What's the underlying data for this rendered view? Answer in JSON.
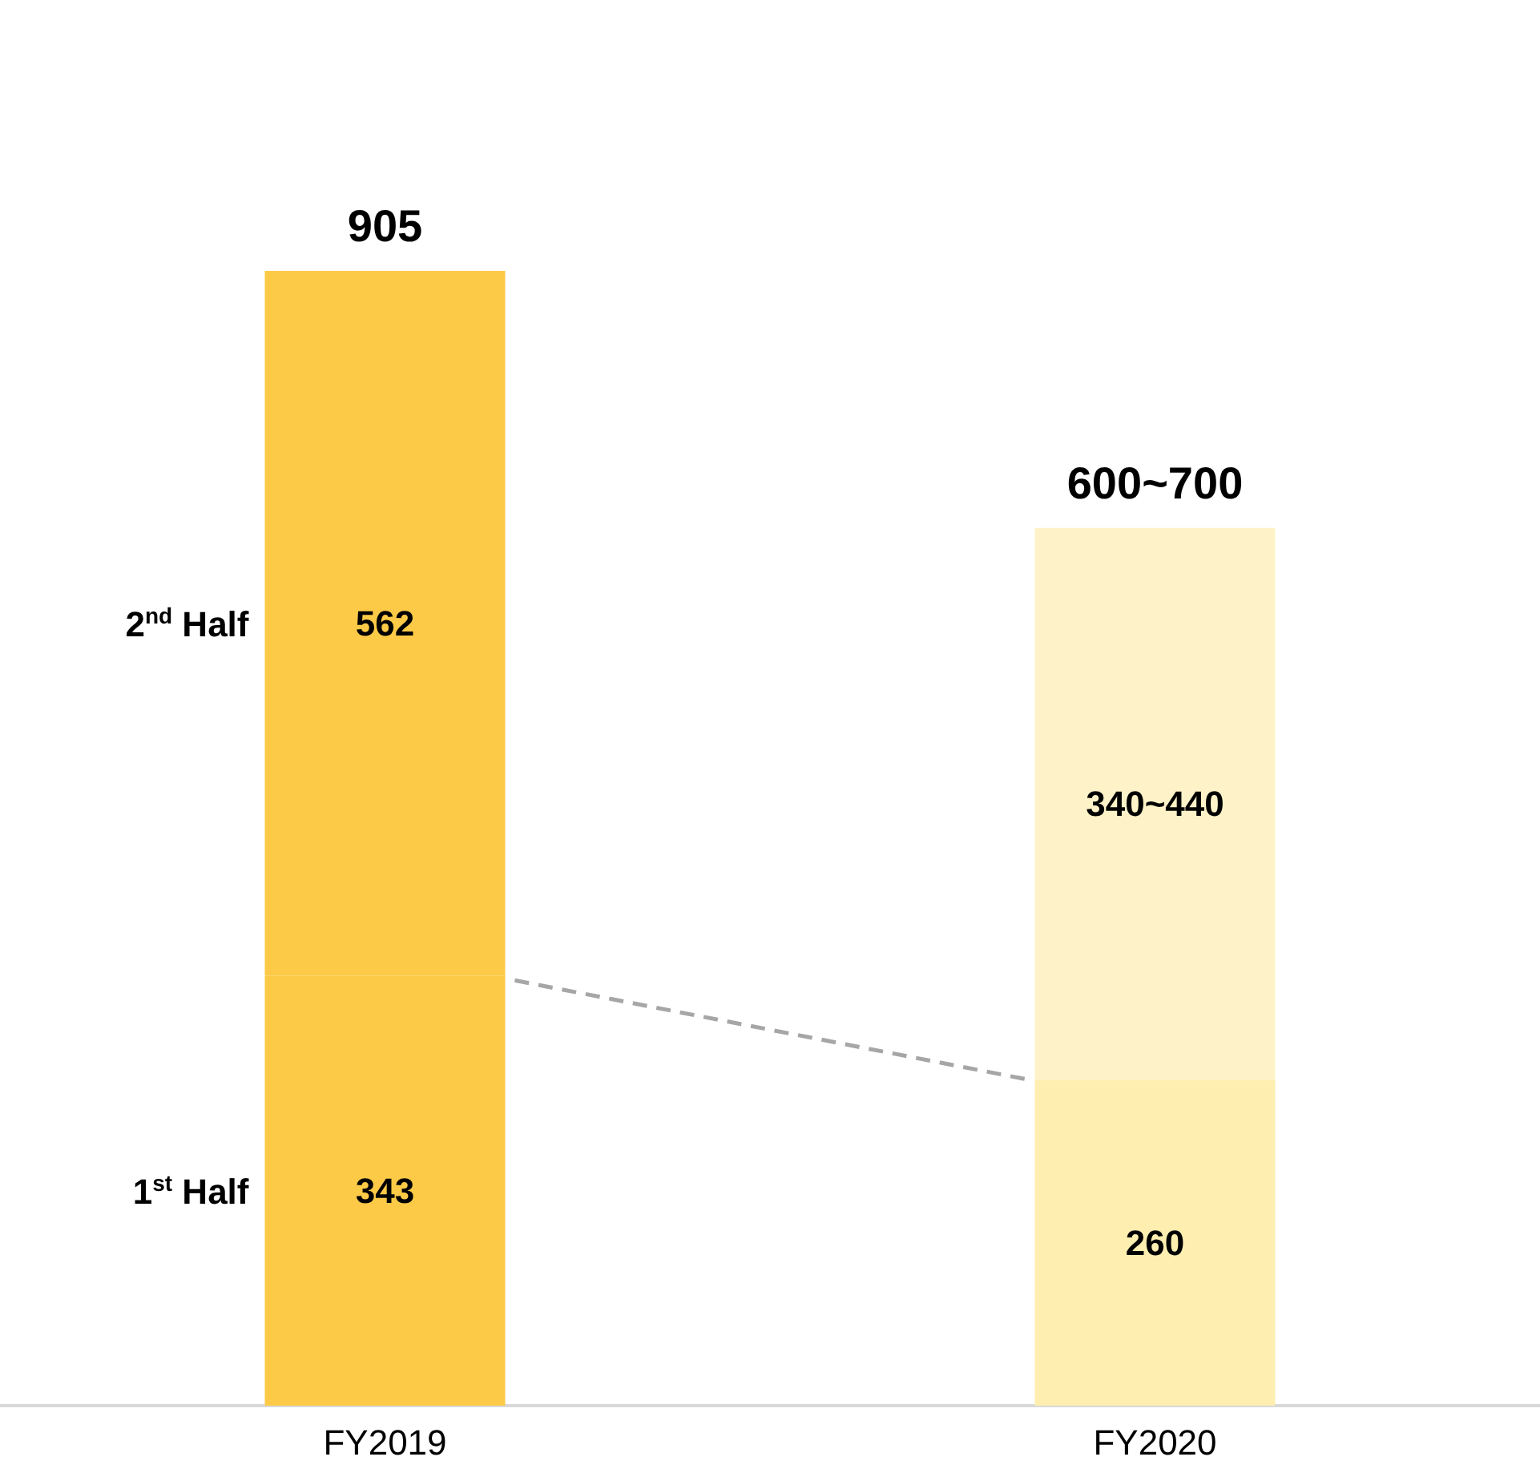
{
  "chart_data": {
    "type": "bar",
    "stacked": true,
    "categories": [
      "FY2019",
      "FY2020"
    ],
    "legend": false,
    "series": [
      {
        "name": "1$^{st}$ Half",
        "colors": [
          "#fdca47",
          "#feeeb0"
        ],
        "values": [
          343,
          260
        ],
        "value_labels": [
          "343",
          "260"
        ]
      },
      {
        "name": "2$^{nd}$ Half",
        "colors": [
          "#fdca47",
          "#fef3c8"
        ],
        "values": [
          562,
          440
        ],
        "value_labels": [
          "562",
          "340~440"
        ]
      }
    ],
    "totals": [
      "905",
      "600~700"
    ]
  }
}
